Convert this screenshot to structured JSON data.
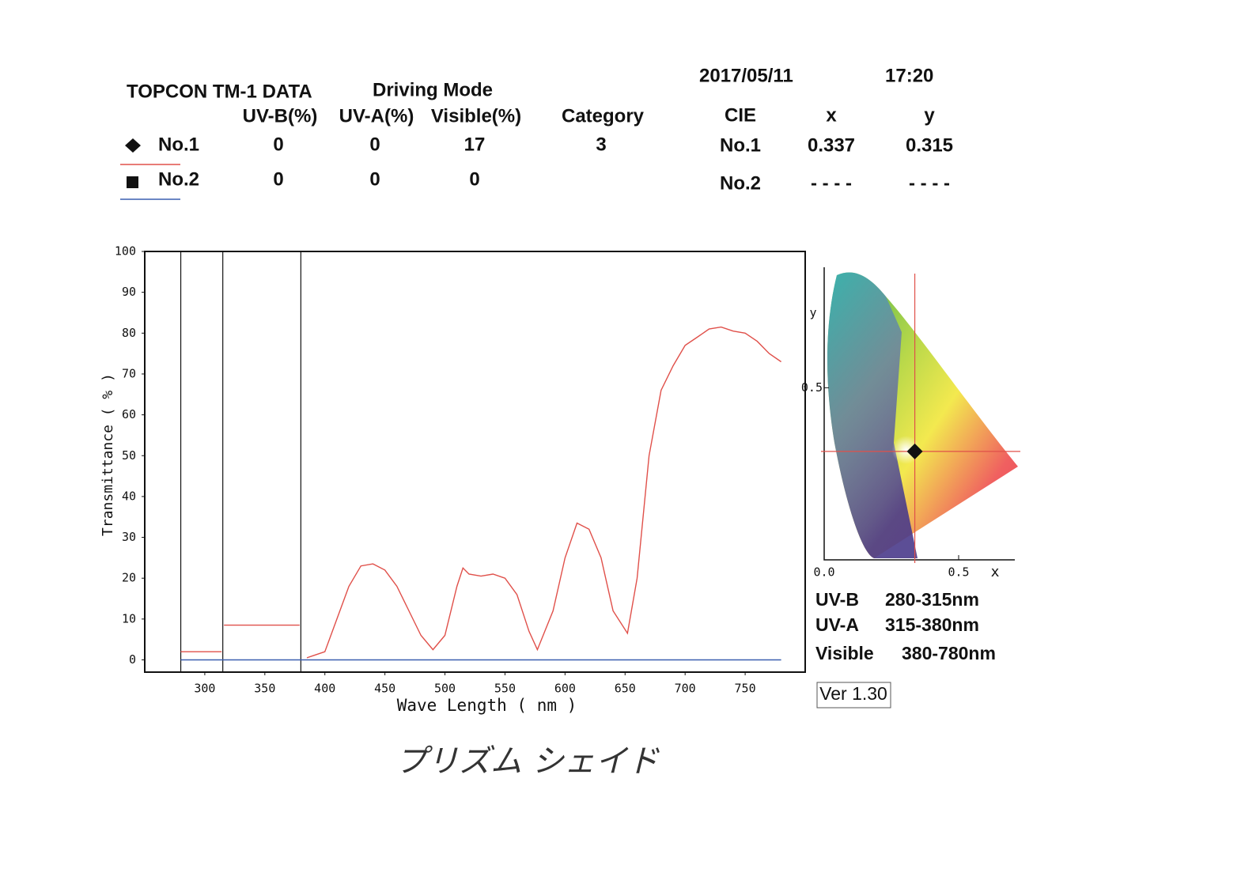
{
  "header": {
    "title": "TOPCON TM-1 DATA",
    "mode": "Driving Mode",
    "date": "2017/05/11",
    "time": "17:20",
    "columns": [
      "UV-B(%)",
      "UV-A(%)",
      "Visible(%)",
      "Category"
    ],
    "rows": [
      [
        0,
        0,
        17,
        3
      ],
      [
        0,
        0,
        0
      ]
    ]
  },
  "cie_table": {
    "columns": [
      "CIE",
      "x",
      "y"
    ],
    "rows": [
      [
        "No.1",
        "0.337",
        "0.315"
      ],
      [
        "No.2",
        "- - - -",
        "- - - -"
      ]
    ]
  },
  "ranges": [
    {
      "name": "UV-B",
      "range": "280-315nm"
    },
    {
      "name": "UV-A",
      "range": "315-380nm"
    },
    {
      "name": "Visible",
      "range": "380-780nm"
    }
  ],
  "version": "Ver 1.30",
  "note": "プリズム シェイド",
  "chart_data": [
    {
      "type": "line",
      "xlabel": "Wave Length ( nm )",
      "ylabel": "Transmittance ( % )",
      "xlim": [
        250,
        800
      ],
      "ylim": [
        -3,
        100
      ],
      "xticks": [
        300,
        350,
        400,
        450,
        500,
        550,
        600,
        650,
        700,
        750
      ],
      "yticks": [
        0,
        10,
        20,
        30,
        40,
        50,
        60,
        70,
        80,
        90,
        100
      ],
      "bands": [
        280,
        315,
        380
      ],
      "series": [
        {
          "name": "No.1",
          "color": "#e0504a",
          "marker": "diamond",
          "x": [
            280,
            314,
            315,
            316,
            379,
            380,
            385,
            390,
            400,
            410,
            420,
            430,
            440,
            450,
            460,
            470,
            480,
            490,
            500,
            510,
            515,
            520,
            530,
            540,
            550,
            560,
            570,
            577,
            590,
            600,
            610,
            620,
            630,
            640,
            652,
            660,
            670,
            680,
            690,
            700,
            710,
            720,
            730,
            740,
            750,
            760,
            770,
            780
          ],
          "values": [
            2,
            2,
            null,
            8.5,
            8.5,
            null,
            0.5,
            1,
            2,
            10,
            18,
            23,
            23.5,
            22,
            18,
            12,
            6,
            2.5,
            6,
            18,
            22.5,
            21,
            20.5,
            21,
            20,
            16,
            7,
            2.5,
            12,
            25,
            33.5,
            32,
            25,
            12,
            6.5,
            20,
            50,
            66,
            72,
            77,
            79,
            81,
            81.5,
            80.5,
            80,
            78,
            75,
            73
          ]
        },
        {
          "name": "No.2",
          "color": "#3a5fb0",
          "marker": "square",
          "x": [
            280,
            780
          ],
          "values": [
            0,
            0
          ]
        }
      ]
    },
    {
      "type": "scatter",
      "xlabel": "x",
      "ylabel": "y",
      "xlim": [
        0,
        0.7
      ],
      "ylim": [
        0,
        0.85
      ],
      "xticks": [
        {
          "value": 0,
          "label": "0.0"
        },
        {
          "value": 0.5,
          "label": "0.5"
        }
      ],
      "yticks": [
        {
          "value": 0.5,
          "label": "0.5"
        }
      ],
      "color": "#e0504a",
      "x": [
        0.337
      ],
      "values": [
        0.315
      ]
    }
  ]
}
